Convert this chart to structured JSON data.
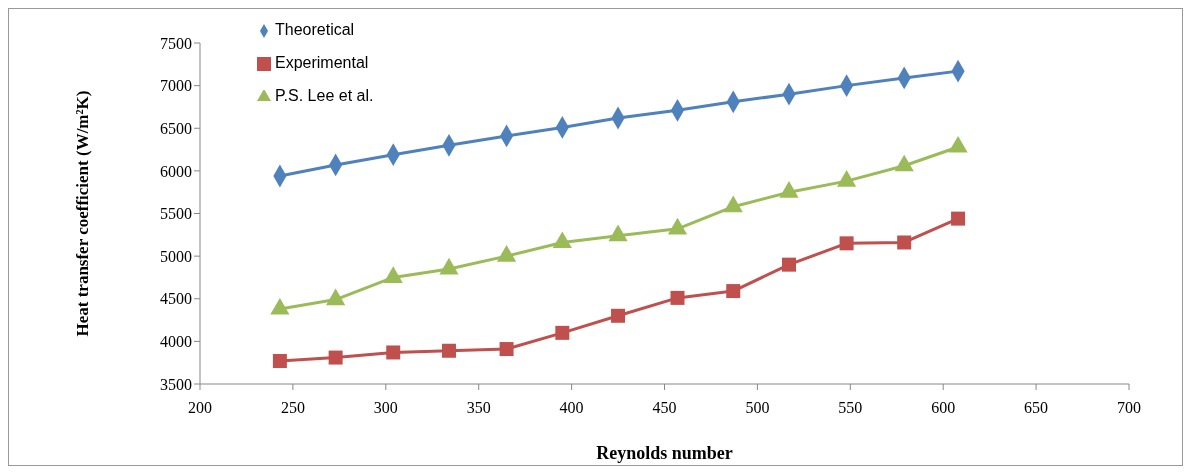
{
  "chart_data": {
    "type": "line",
    "xlabel": "Reynolds number",
    "ylabel": "Heat transfer coefficient (W/m²K)",
    "x": [
      243,
      273,
      304,
      334,
      365,
      395,
      425,
      457,
      487,
      517,
      548,
      579,
      608
    ],
    "series": [
      {
        "name": "Theoretical",
        "color": "#4f81bd",
        "marker": "diamond",
        "values": [
          5940,
          6070,
          6190,
          6300,
          6410,
          6510,
          6620,
          6710,
          6810,
          6900,
          7000,
          7090,
          7170
        ]
      },
      {
        "name": "Experimental",
        "color": "#c0504d",
        "marker": "square",
        "values": [
          3770,
          3810,
          3870,
          3890,
          3910,
          4100,
          4300,
          4510,
          4590,
          4900,
          5150,
          5160,
          5440
        ]
      },
      {
        "name": "P.S. Lee et al.",
        "color": "#9bbb59",
        "marker": "triangle",
        "values": [
          4380,
          4490,
          4750,
          4850,
          5000,
          5160,
          5240,
          5320,
          5580,
          5750,
          5880,
          6060,
          6280
        ]
      }
    ],
    "xlim": [
      200,
      700
    ],
    "xticks": [
      200,
      250,
      300,
      350,
      400,
      450,
      500,
      550,
      600,
      650,
      700
    ],
    "ylim": [
      3500,
      7500
    ],
    "yticks": [
      3500,
      4000,
      4500,
      5000,
      5500,
      6000,
      6500,
      7000,
      7500
    ],
    "grid": false,
    "legend": "top left",
    "line_style": "solid"
  }
}
